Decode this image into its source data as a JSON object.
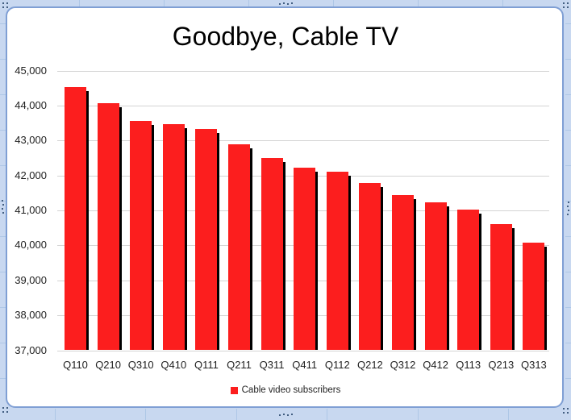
{
  "chart_data": {
    "type": "bar",
    "title": "Goodbye, Cable TV",
    "categories": [
      "Q110",
      "Q210",
      "Q310",
      "Q410",
      "Q111",
      "Q211",
      "Q311",
      "Q411",
      "Q112",
      "Q212",
      "Q312",
      "Q412",
      "Q113",
      "Q213",
      "Q313"
    ],
    "series": [
      {
        "name": "Cable video subscribers",
        "values": [
          44530,
          44060,
          43550,
          43470,
          43340,
          42880,
          42510,
          42220,
          42100,
          41780,
          41430,
          41220,
          41030,
          40600,
          40080
        ]
      }
    ],
    "xlabel": "",
    "ylabel": "",
    "ylim": [
      37000,
      45000
    ],
    "ytick_interval": 1000,
    "ytick_labels": [
      "37,000",
      "38,000",
      "39,000",
      "40,000",
      "41,000",
      "42,000",
      "43,000",
      "44,000",
      "45,000"
    ],
    "grid": true,
    "legend_position": "bottom",
    "colors": {
      "bar": "#fc1e1e",
      "bar_shadow": "#000000",
      "gridline": "#d4d4d4",
      "title_text": "#000000",
      "axis_text": "#1f1f1f"
    }
  },
  "frame": {
    "type_label": "embedded-chart-selected",
    "colors": {
      "sheet_background": "#c8d8f0",
      "sheet_gridline": "#aec7e6",
      "chart_border": "#7f9fd4",
      "chart_background": "#ffffff",
      "handle_dot": "#17375e"
    }
  }
}
